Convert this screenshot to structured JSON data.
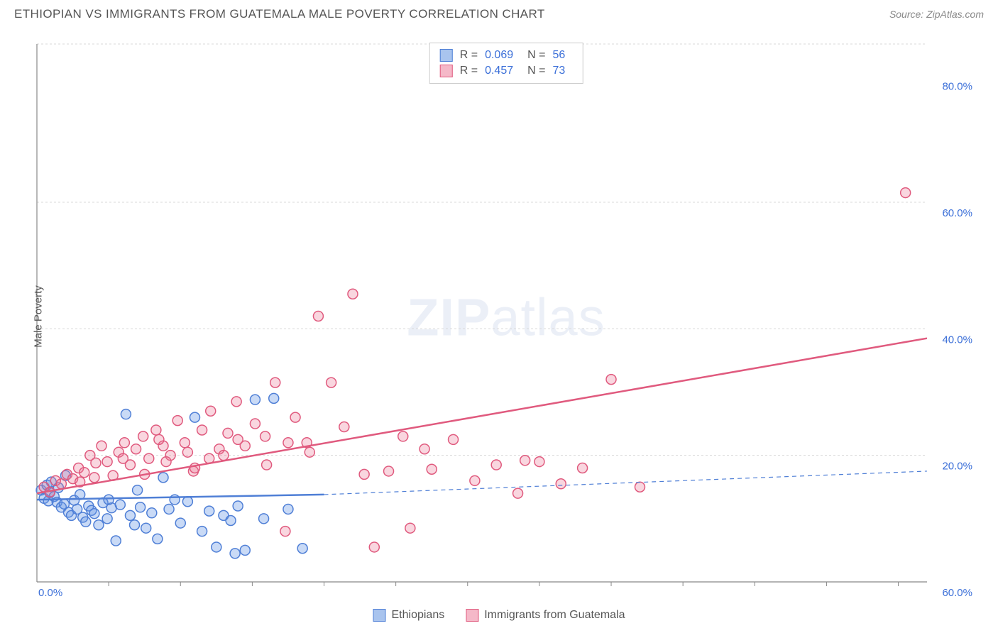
{
  "title": "ETHIOPIAN VS IMMIGRANTS FROM GUATEMALA MALE POVERTY CORRELATION CHART",
  "source": "Source: ZipAtlas.com",
  "watermark_zip": "ZIP",
  "watermark_atlas": "atlas",
  "y_axis_label": "Male Poverty",
  "chart": {
    "type": "scatter",
    "background_color": "#ffffff",
    "grid_color": "#d8d8d8",
    "grid_dash": "3 3",
    "axis_line_color": "#888888",
    "tick_label_color": "#3b6fd8",
    "tick_fontsize": 15,
    "x_range": [
      0,
      62
    ],
    "y_range": [
      0,
      85
    ],
    "x_ticks": [
      {
        "v": 0,
        "label": "0.0%"
      },
      {
        "v": 60,
        "label": "60.0%"
      }
    ],
    "y_ticks": [
      {
        "v": 20,
        "label": "20.0%"
      },
      {
        "v": 40,
        "label": "40.0%"
      },
      {
        "v": 60,
        "label": "60.0%"
      },
      {
        "v": 80,
        "label": "80.0%"
      }
    ],
    "y_grid": [
      20,
      40,
      60,
      85
    ],
    "x_grid_minor": [
      5,
      10,
      15,
      20,
      25,
      30,
      35,
      40,
      45,
      50,
      55,
      60
    ],
    "marker_radius": 7,
    "marker_stroke_width": 1.5,
    "line_width": 2.5
  },
  "series": [
    {
      "name": "Ethiopians",
      "fill_color": "rgba(100,150,230,0.35)",
      "stroke_color": "#4f7fd6",
      "swatch_fill": "#a9c4ee",
      "swatch_stroke": "#4f7fd6",
      "R_label": "R =",
      "R_value": "0.069",
      "N_label": "N =",
      "N_value": "56",
      "trend": {
        "x1": 0,
        "y1": 13,
        "x2_solid": 20,
        "y2_solid": 13.8,
        "x2": 62,
        "y2": 17.5
      },
      "points": [
        [
          0.3,
          14.5
        ],
        [
          0.5,
          13.2
        ],
        [
          0.7,
          15.3
        ],
        [
          0.8,
          12.8
        ],
        [
          0.9,
          14.1
        ],
        [
          1.0,
          15.8
        ],
        [
          1.2,
          13.5
        ],
        [
          1.4,
          12.6
        ],
        [
          1.5,
          14.9
        ],
        [
          1.7,
          11.8
        ],
        [
          1.9,
          12.3
        ],
        [
          2.0,
          16.8
        ],
        [
          2.2,
          11.0
        ],
        [
          2.4,
          10.5
        ],
        [
          2.6,
          12.9
        ],
        [
          2.8,
          11.5
        ],
        [
          3.0,
          13.8
        ],
        [
          3.2,
          10.2
        ],
        [
          3.4,
          9.5
        ],
        [
          3.6,
          12.0
        ],
        [
          3.8,
          11.3
        ],
        [
          4.0,
          10.8
        ],
        [
          4.3,
          9.0
        ],
        [
          4.6,
          12.5
        ],
        [
          4.9,
          10.0
        ],
        [
          5.2,
          11.7
        ],
        [
          5.5,
          6.5
        ],
        [
          5.8,
          12.2
        ],
        [
          6.2,
          26.5
        ],
        [
          6.5,
          10.5
        ],
        [
          6.8,
          9.0
        ],
        [
          7.2,
          11.8
        ],
        [
          7.6,
          8.5
        ],
        [
          8.0,
          10.9
        ],
        [
          8.4,
          6.8
        ],
        [
          8.8,
          16.5
        ],
        [
          9.2,
          11.5
        ],
        [
          9.6,
          13.0
        ],
        [
          10.0,
          9.3
        ],
        [
          10.5,
          12.7
        ],
        [
          11.0,
          26.0
        ],
        [
          11.5,
          8.0
        ],
        [
          12.0,
          11.2
        ],
        [
          12.5,
          5.5
        ],
        [
          13.0,
          10.5
        ],
        [
          13.5,
          9.7
        ],
        [
          14.0,
          12.0
        ],
        [
          14.5,
          5.0
        ],
        [
          15.2,
          28.8
        ],
        [
          15.8,
          10.0
        ],
        [
          16.5,
          29.0
        ],
        [
          17.5,
          11.5
        ],
        [
          18.5,
          5.3
        ],
        [
          13.8,
          4.5
        ],
        [
          7.0,
          14.5
        ],
        [
          5.0,
          13.0
        ]
      ]
    },
    {
      "name": "Immigrants from Guatemala",
      "fill_color": "rgba(235,120,150,0.3)",
      "stroke_color": "#e05a7e",
      "swatch_fill": "#f5b8c8",
      "swatch_stroke": "#e05a7e",
      "R_label": "R =",
      "R_value": "0.457",
      "N_label": "N =",
      "N_value": "73",
      "trend": {
        "x1": 0,
        "y1": 14,
        "x2_solid": 62,
        "y2_solid": 38.5,
        "x2": 62,
        "y2": 38.5
      },
      "points": [
        [
          0.5,
          15.0
        ],
        [
          0.9,
          14.2
        ],
        [
          1.3,
          16.0
        ],
        [
          1.7,
          15.5
        ],
        [
          2.1,
          17.0
        ],
        [
          2.5,
          16.3
        ],
        [
          2.9,
          18.0
        ],
        [
          3.3,
          17.3
        ],
        [
          3.7,
          20.0
        ],
        [
          4.1,
          18.8
        ],
        [
          4.5,
          21.5
        ],
        [
          4.9,
          19.0
        ],
        [
          5.3,
          16.8
        ],
        [
          5.7,
          20.5
        ],
        [
          6.1,
          22.0
        ],
        [
          6.5,
          18.5
        ],
        [
          6.9,
          21.0
        ],
        [
          7.4,
          23.0
        ],
        [
          7.8,
          19.5
        ],
        [
          8.3,
          24.0
        ],
        [
          8.8,
          21.5
        ],
        [
          9.3,
          20.0
        ],
        [
          9.8,
          25.5
        ],
        [
          10.3,
          22.0
        ],
        [
          10.9,
          17.5
        ],
        [
          11.5,
          24.0
        ],
        [
          12.1,
          27.0
        ],
        [
          12.7,
          21.0
        ],
        [
          13.3,
          23.5
        ],
        [
          13.9,
          28.5
        ],
        [
          14.5,
          21.5
        ],
        [
          15.2,
          25.0
        ],
        [
          15.9,
          23.0
        ],
        [
          16.6,
          31.5
        ],
        [
          17.3,
          8.0
        ],
        [
          18.0,
          26.0
        ],
        [
          18.8,
          22.0
        ],
        [
          19.6,
          42.0
        ],
        [
          20.5,
          31.5
        ],
        [
          21.4,
          24.5
        ],
        [
          22.0,
          45.5
        ],
        [
          22.8,
          17.0
        ],
        [
          23.5,
          5.5
        ],
        [
          24.5,
          17.5
        ],
        [
          25.5,
          23.0
        ],
        [
          26.0,
          8.5
        ],
        [
          27.5,
          17.8
        ],
        [
          29.0,
          22.5
        ],
        [
          30.5,
          16.0
        ],
        [
          32.0,
          18.5
        ],
        [
          33.5,
          14.0
        ],
        [
          35.0,
          19.0
        ],
        [
          36.5,
          15.5
        ],
        [
          38.0,
          18.0
        ],
        [
          40.0,
          32.0
        ],
        [
          42.0,
          15.0
        ],
        [
          34.0,
          19.2
        ],
        [
          27.0,
          21.0
        ],
        [
          9.0,
          19.0
        ],
        [
          10.5,
          20.5
        ],
        [
          12.0,
          19.5
        ],
        [
          14.0,
          22.5
        ],
        [
          60.5,
          61.5
        ],
        [
          6.0,
          19.5
        ],
        [
          7.5,
          17.0
        ],
        [
          8.5,
          22.5
        ],
        [
          11.0,
          18.0
        ],
        [
          13.0,
          20.0
        ],
        [
          16.0,
          18.5
        ],
        [
          17.5,
          22.0
        ],
        [
          19.0,
          20.5
        ],
        [
          4.0,
          16.5
        ],
        [
          3.0,
          15.8
        ]
      ]
    }
  ]
}
